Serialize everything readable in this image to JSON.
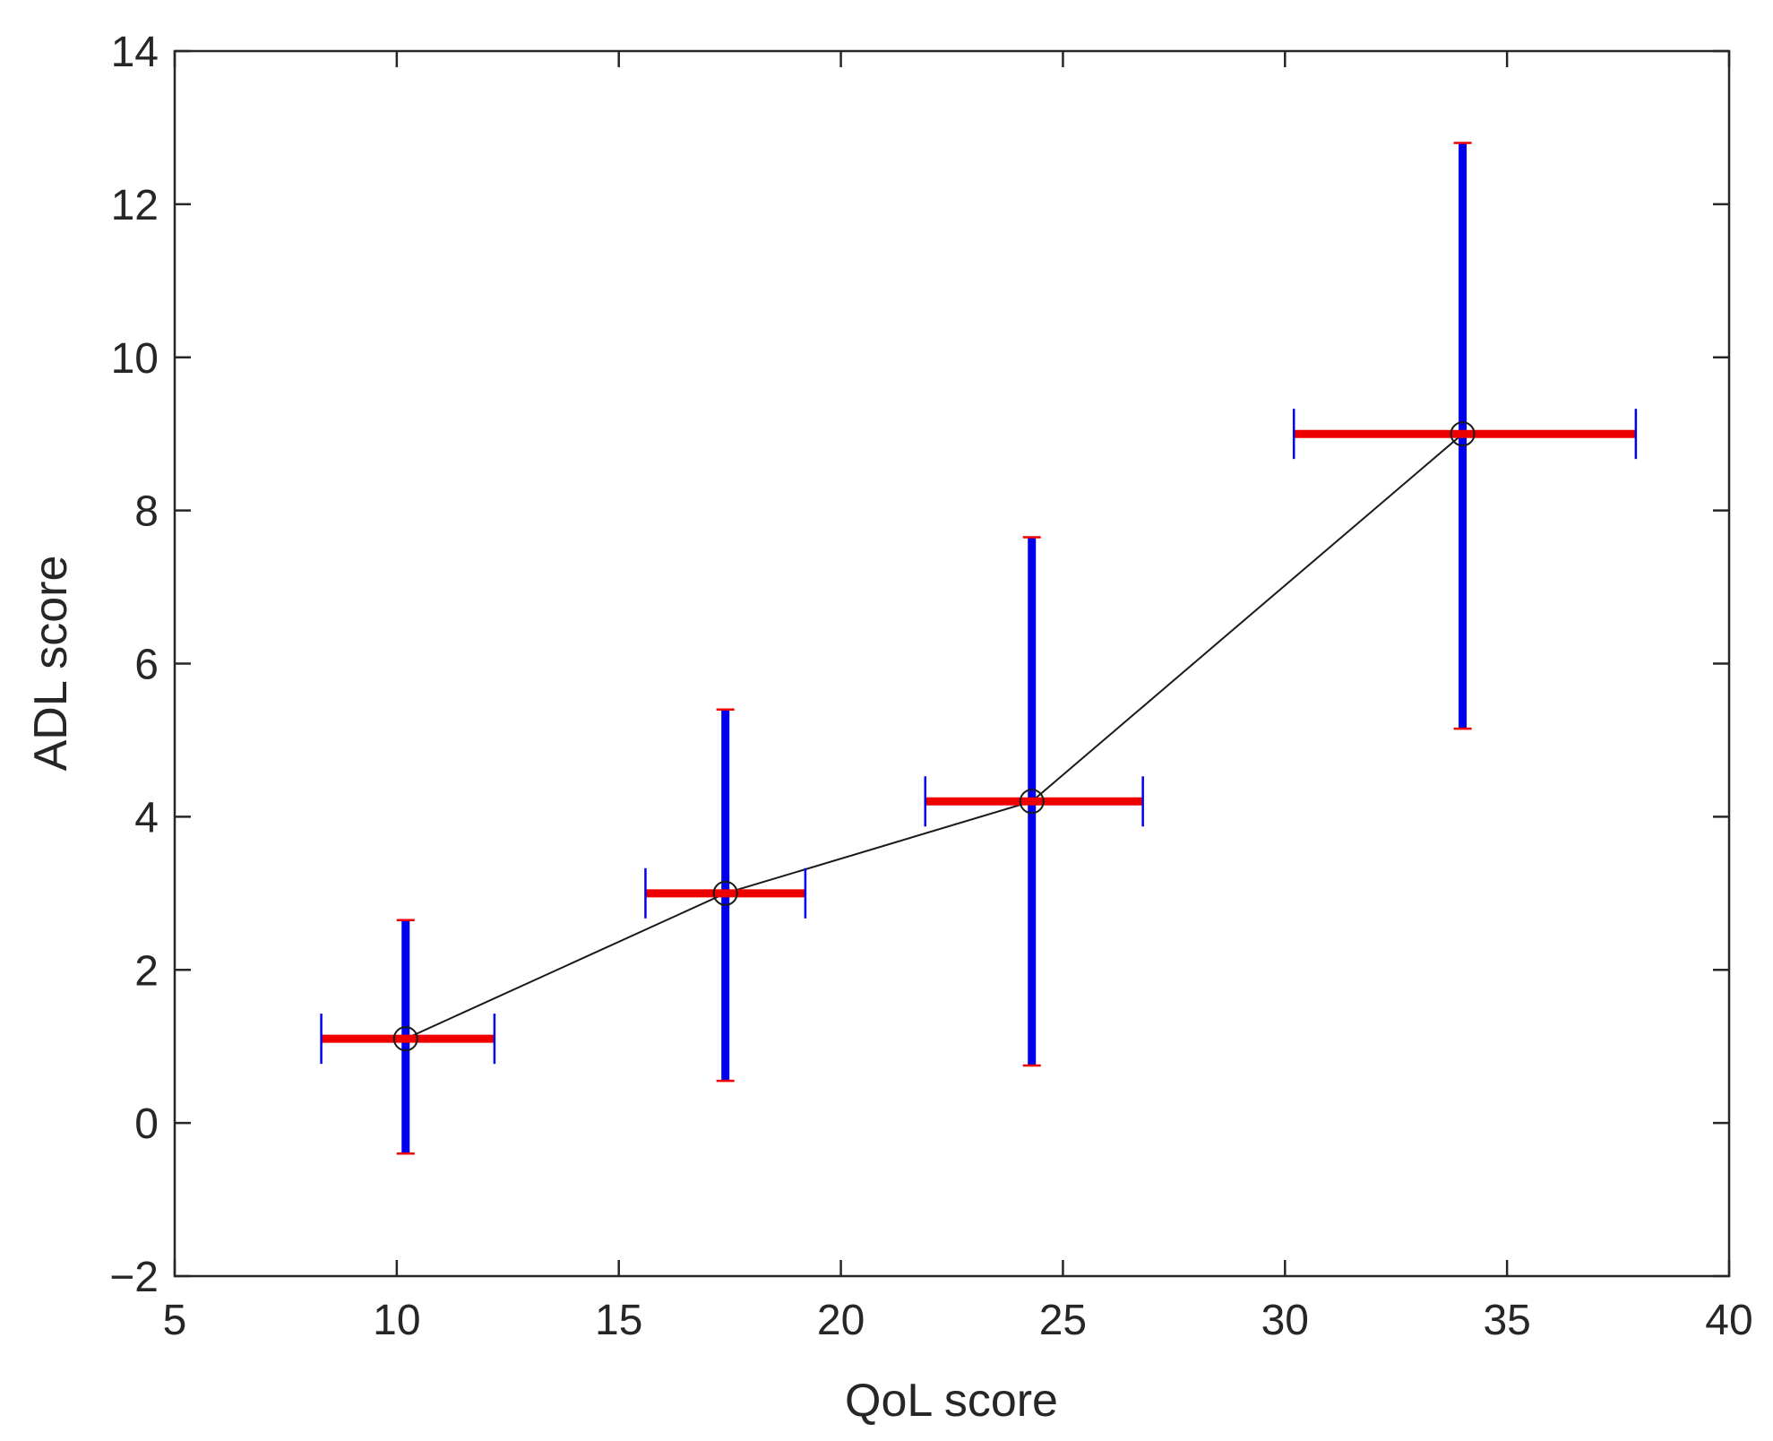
{
  "chart_data": {
    "type": "scatter",
    "xlabel": "QoL score",
    "ylabel": "ADL score",
    "xlim": [
      5,
      40
    ],
    "ylim": [
      -2,
      14
    ],
    "xticks": [
      5,
      10,
      15,
      20,
      25,
      30,
      35,
      40
    ],
    "yticks": [
      -2,
      0,
      2,
      4,
      6,
      8,
      10,
      12,
      14
    ],
    "xtick_labels": [
      "5",
      "10",
      "15",
      "20",
      "25",
      "30",
      "35",
      "40"
    ],
    "ytick_labels": [
      "−2",
      "0",
      "2",
      "4",
      "6",
      "8",
      "10",
      "12",
      "14"
    ],
    "grid": false,
    "legend": "none",
    "colors": {
      "line": "#1a1a1a",
      "vertical_errorbar": "#0000ee",
      "horizontal_errorbar": "#ee0000",
      "marker": "#1a1a1a"
    },
    "points": [
      {
        "x": 10.2,
        "y": 1.1,
        "xerr_low": 8.3,
        "xerr_high": 12.2,
        "yerr_low": -0.4,
        "yerr_high": 2.65
      },
      {
        "x": 17.4,
        "y": 3.0,
        "xerr_low": 15.6,
        "xerr_high": 19.2,
        "yerr_low": 0.55,
        "yerr_high": 5.4
      },
      {
        "x": 24.3,
        "y": 4.2,
        "xerr_low": 21.9,
        "xerr_high": 26.8,
        "yerr_low": 0.75,
        "yerr_high": 7.65
      },
      {
        "x": 34.0,
        "y": 9.0,
        "xerr_low": 30.2,
        "xerr_high": 37.9,
        "yerr_low": 5.15,
        "yerr_high": 12.8
      }
    ]
  }
}
